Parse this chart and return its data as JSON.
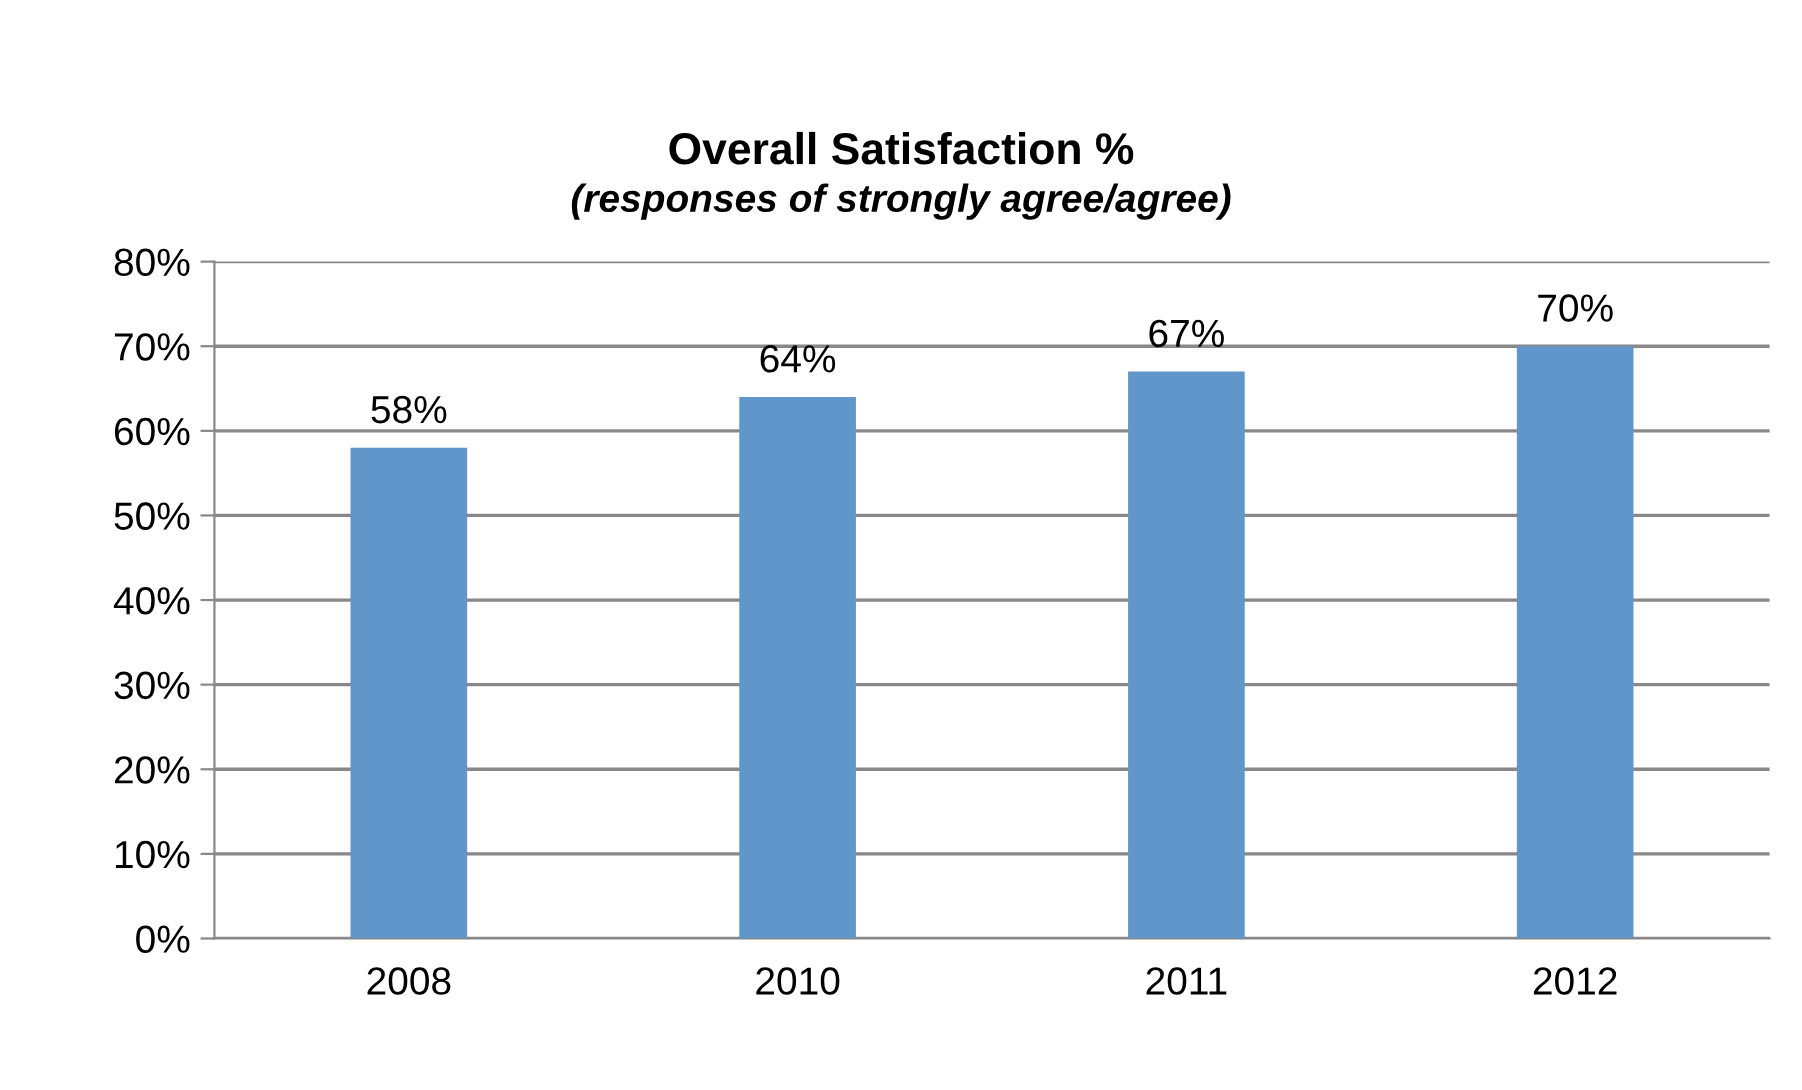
{
  "chart_data": {
    "type": "bar",
    "title": "Overall Satisfaction %",
    "subtitle": "(responses of strongly agree/agree)",
    "categories": [
      "2008",
      "2010",
      "2011",
      "2012"
    ],
    "values": [
      58,
      64,
      67,
      70
    ],
    "color": "#6096c9",
    "value_labels": [
      "58%",
      "64%",
      "67%",
      "70%"
    ],
    "ylim": [
      0,
      80
    ],
    "yticks": [
      {
        "value": 0,
        "label": "0%"
      },
      {
        "value": 10,
        "label": "10%"
      },
      {
        "value": 20,
        "label": "20%"
      },
      {
        "value": 30,
        "label": "30%"
      },
      {
        "value": 40,
        "label": "40%"
      },
      {
        "value": 50,
        "label": "50%"
      },
      {
        "value": 60,
        "label": "60%"
      },
      {
        "value": 70,
        "label": "70%"
      },
      {
        "value": 80,
        "label": "80%"
      }
    ],
    "grid": "y",
    "legend": false
  }
}
